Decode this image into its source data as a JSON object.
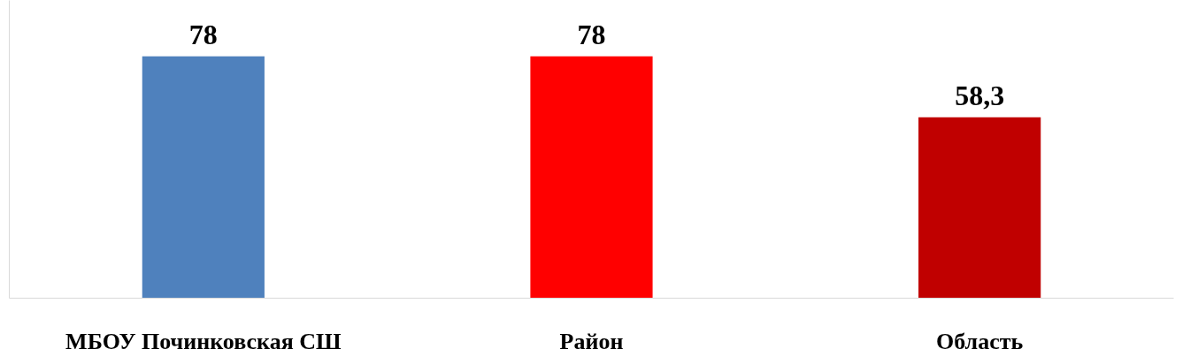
{
  "chart_data": {
    "type": "bar",
    "categories": [
      "МБОУ Починковская СШ",
      "Район",
      "Область"
    ],
    "values": [
      78,
      78,
      58.3
    ],
    "colors": [
      "#4f81bd",
      "#ff0000",
      "#c00000"
    ],
    "value_labels": [
      "78",
      "78",
      "58,3"
    ],
    "ylim": [
      0,
      96
    ],
    "tick_labels": "x"
  }
}
